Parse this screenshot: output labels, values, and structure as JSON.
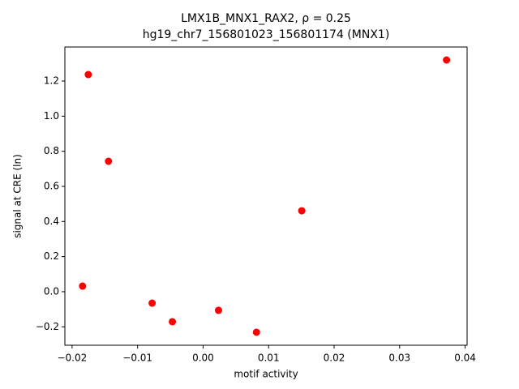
{
  "chart_data": {
    "type": "scatter",
    "title": "LMX1B_MNX1_RAX2, ρ = 0.25",
    "subtitle": "hg19_chr7_156801023_156801174 (MNX1)",
    "x_label": "motif activity",
    "y_label": "signal at CRE (ln)",
    "color": "#ff0000",
    "x": [
      -0.01753,
      -0.01444,
      -0.0184,
      -0.00778,
      -0.00469,
      0.00235,
      0.00815,
      0.01506,
      0.03716
    ],
    "values": [
      1.237,
      0.743,
      0.032,
      -0.065,
      -0.171,
      -0.106,
      -0.231,
      0.461,
      1.32
    ],
    "xlim": [
      -0.0211,
      0.0403
    ],
    "ylim": [
      -0.305,
      1.394
    ],
    "xticks": [
      {
        "value": -0.02,
        "label": "−0.02"
      },
      {
        "value": -0.01,
        "label": "−0.01"
      },
      {
        "value": 0,
        "label": "0.00"
      },
      {
        "value": 0.01,
        "label": "0.01"
      },
      {
        "value": 0.02,
        "label": "0.02"
      },
      {
        "value": 0.03,
        "label": "0.03"
      },
      {
        "value": 0.04,
        "label": "0.04"
      }
    ],
    "yticks": [
      {
        "value": -0.2,
        "label": "−0.2"
      },
      {
        "value": 0,
        "label": "0.0"
      },
      {
        "value": 0.2,
        "label": "0.2"
      },
      {
        "value": 0.4,
        "label": "0.4"
      },
      {
        "value": 0.6,
        "label": "0.6"
      },
      {
        "value": 0.8,
        "label": "0.8"
      },
      {
        "value": 1.0,
        "label": "1.0"
      },
      {
        "value": 1.2,
        "label": "1.2"
      }
    ]
  }
}
